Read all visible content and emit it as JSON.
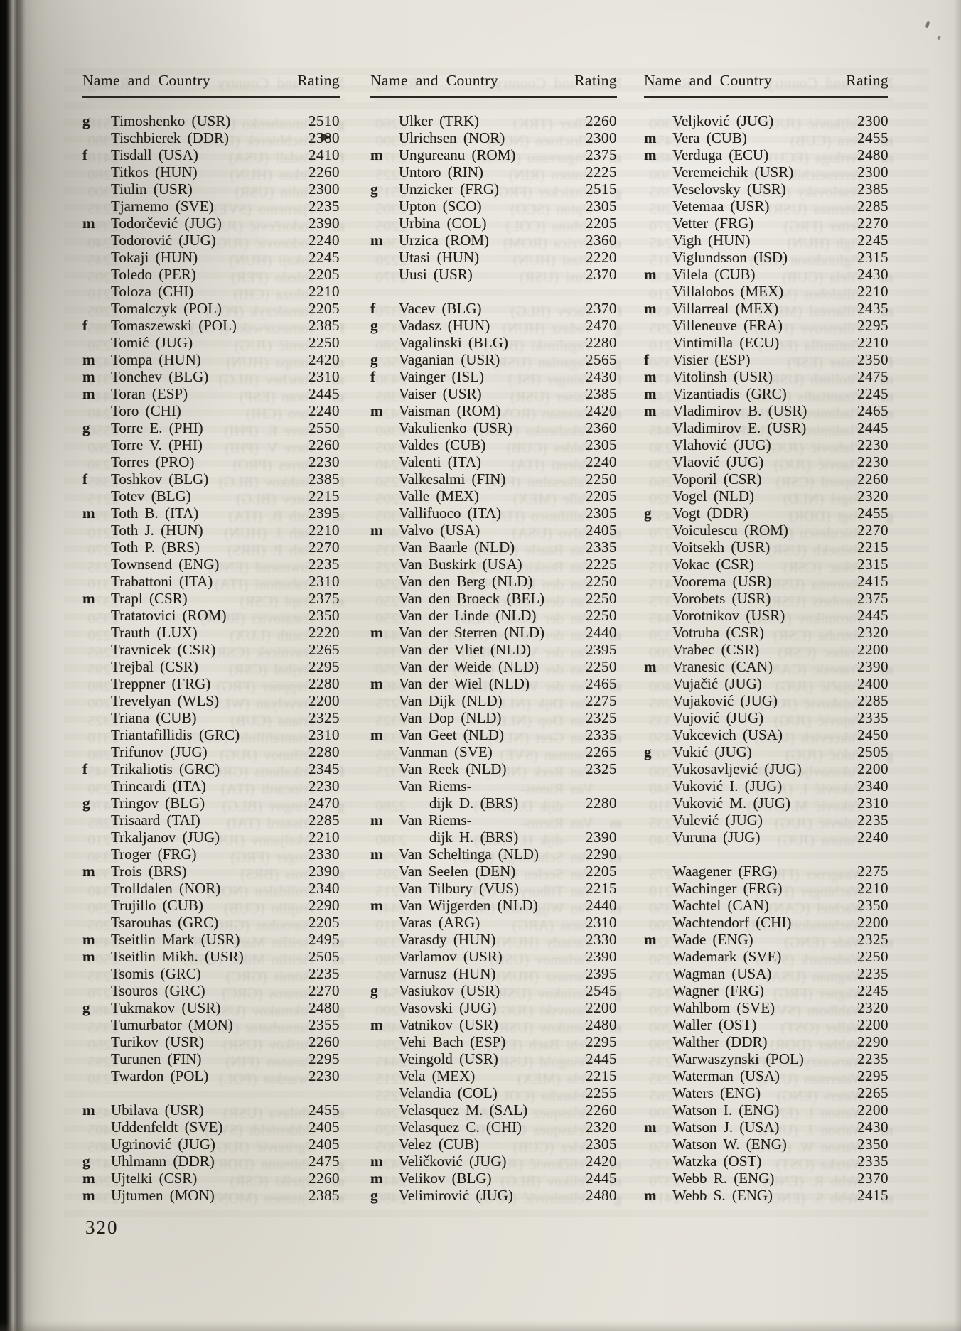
{
  "page": {
    "number": "320",
    "header": {
      "name_country": "Name and Country",
      "rating": "Rating"
    }
  },
  "columns": [
    {
      "entries": [
        {
          "p": "g",
          "n": "Timoshenko (USR)",
          "r": "2510"
        },
        {
          "p": "",
          "n": "Tischbierek (DDR)",
          "r": "2380"
        },
        {
          "p": "f",
          "n": "Tisdall (USA)",
          "r": "2410"
        },
        {
          "p": "",
          "n": "Titkos (HUN)",
          "r": "2260"
        },
        {
          "p": "",
          "n": "Tiulin (USR)",
          "r": "2300"
        },
        {
          "p": "",
          "n": "Tjarnemo (SVE)",
          "r": "2235"
        },
        {
          "p": "m",
          "n": "Todorčević (JUG)",
          "r": "2390"
        },
        {
          "p": "",
          "n": "Todorović (JUG)",
          "r": "2240"
        },
        {
          "p": "",
          "n": "Tokaji (HUN)",
          "r": "2245"
        },
        {
          "p": "",
          "n": "Toledo (PER)",
          "r": "2205"
        },
        {
          "p": "",
          "n": "Toloza (CHI)",
          "r": "2210"
        },
        {
          "p": "",
          "n": "Tomalczyk (POL)",
          "r": "2205"
        },
        {
          "p": "f",
          "n": "Tomaszewski (POL)",
          "r": "2385"
        },
        {
          "p": "",
          "n": "Tomić (JUG)",
          "r": "2250"
        },
        {
          "p": "m",
          "n": "Tompa (HUN)",
          "r": "2420"
        },
        {
          "p": "m",
          "n": "Tonchev (BLG)",
          "r": "2310"
        },
        {
          "p": "m",
          "n": "Toran (ESP)",
          "r": "2445"
        },
        {
          "p": "",
          "n": "Toro (CHI)",
          "r": "2240"
        },
        {
          "p": "g",
          "n": "Torre E. (PHI)",
          "r": "2550"
        },
        {
          "p": "",
          "n": "Torre V. (PHI)",
          "r": "2260"
        },
        {
          "p": "",
          "n": "Torres (PRO)",
          "r": "2230"
        },
        {
          "p": "f",
          "n": "Toshkov (BLG)",
          "r": "2385"
        },
        {
          "p": "",
          "n": "Totev (BLG)",
          "r": "2215"
        },
        {
          "p": "m",
          "n": "Toth B. (ITA)",
          "r": "2395"
        },
        {
          "p": "",
          "n": "Toth J. (HUN)",
          "r": "2210"
        },
        {
          "p": "",
          "n": "Toth P. (BRS)",
          "r": "2270"
        },
        {
          "p": "",
          "n": "Townsend (ENG)",
          "r": "2235"
        },
        {
          "p": "",
          "n": "Trabattoni (ITA)",
          "r": "2310"
        },
        {
          "p": "m",
          "n": "Trapl (CSR)",
          "r": "2375"
        },
        {
          "p": "",
          "n": "Tratatovici (ROM)",
          "r": "2350"
        },
        {
          "p": "",
          "n": "Trauth (LUX)",
          "r": "2220"
        },
        {
          "p": "",
          "n": "Travnicek (CSR)",
          "r": "2265"
        },
        {
          "p": "",
          "n": "Trejbal (CSR)",
          "r": "2295"
        },
        {
          "p": "",
          "n": "Treppner (FRG)",
          "r": "2280"
        },
        {
          "p": "",
          "n": "Trevelyan (WLS)",
          "r": "2200"
        },
        {
          "p": "",
          "n": "Triana (CUB)",
          "r": "2325"
        },
        {
          "p": "",
          "n": "Triantafillidis (GRC)",
          "r": "2310"
        },
        {
          "p": "",
          "n": "Trifunov (JUG)",
          "r": "2280"
        },
        {
          "p": "f",
          "n": "Trikaliotis (GRC)",
          "r": "2345"
        },
        {
          "p": "",
          "n": "Trincardi (ITA)",
          "r": "2230"
        },
        {
          "p": "g",
          "n": "Tringov (BLG)",
          "r": "2470"
        },
        {
          "p": "",
          "n": "Trisaard (TAI)",
          "r": "2285"
        },
        {
          "p": "",
          "n": "Trkaljanov (JUG)",
          "r": "2210"
        },
        {
          "p": "",
          "n": "Troger (FRG)",
          "r": "2330"
        },
        {
          "p": "m",
          "n": "Trois (BRS)",
          "r": "2390"
        },
        {
          "p": "",
          "n": "Trolldalen (NOR)",
          "r": "2340"
        },
        {
          "p": "",
          "n": "Trujillo (CUB)",
          "r": "2290"
        },
        {
          "p": "",
          "n": "Tsarouhas (GRC)",
          "r": "2205"
        },
        {
          "p": "m",
          "n": "Tseitlin Mark (USR)",
          "r": "2495"
        },
        {
          "p": "m",
          "n": "Tseitlin Mikh. (USR)",
          "r": "2505"
        },
        {
          "p": "",
          "n": "Tsomis (GRC)",
          "r": "2235"
        },
        {
          "p": "",
          "n": "Tsouros (GRC)",
          "r": "2270"
        },
        {
          "p": "g",
          "n": "Tukmakov (USR)",
          "r": "2480"
        },
        {
          "p": "",
          "n": "Tumurbator (MON)",
          "r": "2355"
        },
        {
          "p": "",
          "n": "Turikov (USR)",
          "r": "2260"
        },
        {
          "p": "",
          "n": "Turunen (FIN)",
          "r": "2295"
        },
        {
          "p": "",
          "n": "Twardon (POL)",
          "r": "2230"
        },
        {
          "gap": true
        },
        {
          "p": "m",
          "n": "Ubilava (USR)",
          "r": "2455"
        },
        {
          "p": "",
          "n": "Uddenfeldt (SVE)",
          "r": "2405"
        },
        {
          "p": "",
          "n": "Ugrinović (JUG)",
          "r": "2405"
        },
        {
          "p": "g",
          "n": "Uhlmann (DDR)",
          "r": "2475"
        },
        {
          "p": "m",
          "n": "Ujtelki (CSR)",
          "r": "2260"
        },
        {
          "p": "m",
          "n": "Ujtumen (MON)",
          "r": "2385"
        }
      ]
    },
    {
      "entries": [
        {
          "p": "",
          "n": "Ulker (TRK)",
          "r": "2260"
        },
        {
          "p": "",
          "n": "Ulrichsen (NOR)",
          "r": "2300"
        },
        {
          "p": "m",
          "n": "Ungureanu (ROM)",
          "r": "2375"
        },
        {
          "p": "",
          "n": "Untoro (RIN)",
          "r": "2225"
        },
        {
          "p": "g",
          "n": "Unzicker (FRG)",
          "r": "2515"
        },
        {
          "p": "",
          "n": "Upton (SCO)",
          "r": "2305"
        },
        {
          "p": "",
          "n": "Urbina (COL)",
          "r": "2205"
        },
        {
          "p": "m",
          "n": "Urzica (ROM)",
          "r": "2360"
        },
        {
          "p": "",
          "n": "Utasi (HUN)",
          "r": "2220"
        },
        {
          "p": "",
          "n": "Uusi (USR)",
          "r": "2370"
        },
        {
          "gap": true
        },
        {
          "p": "f",
          "n": "Vacev (BLG)",
          "r": "2370"
        },
        {
          "p": "g",
          "n": "Vadasz (HUN)",
          "r": "2470"
        },
        {
          "p": "",
          "n": "Vagalinski (BLG)",
          "r": "2280"
        },
        {
          "p": "g",
          "n": "Vaganian (USR)",
          "r": "2565"
        },
        {
          "p": "f",
          "n": "Vainger (ISL)",
          "r": "2430"
        },
        {
          "p": "",
          "n": "Vaiser (USR)",
          "r": "2385"
        },
        {
          "p": "m",
          "n": "Vaisman (ROM)",
          "r": "2420"
        },
        {
          "p": "",
          "n": "Vakulienko (USR)",
          "r": "2360"
        },
        {
          "p": "",
          "n": "Valdes (CUB)",
          "r": "2305"
        },
        {
          "p": "",
          "n": "Valenti (ITA)",
          "r": "2240"
        },
        {
          "p": "",
          "n": "Valkesalmi (FIN)",
          "r": "2250"
        },
        {
          "p": "",
          "n": "Valle (MEX)",
          "r": "2205"
        },
        {
          "p": "",
          "n": "Vallifuoco (ITA)",
          "r": "2305"
        },
        {
          "p": "m",
          "n": "Valvo (USA)",
          "r": "2405"
        },
        {
          "p": "",
          "n": "Van Baarle (NLD)",
          "r": "2335"
        },
        {
          "p": "",
          "n": "Van Buskirk (USA)",
          "r": "2225"
        },
        {
          "p": "",
          "n": "Van den Berg (NLD)",
          "r": "2250"
        },
        {
          "p": "",
          "n": "Van den Broeck (BEL)",
          "r": "2250"
        },
        {
          "p": "",
          "n": "Van der Linde (NLD)",
          "r": "2250"
        },
        {
          "p": "m",
          "n": "Van der Sterren (NLD)",
          "r": "2440"
        },
        {
          "p": "",
          "n": "Van der Vliet (NLD)",
          "r": "2395"
        },
        {
          "p": "",
          "n": "Van der Weide (NLD)",
          "r": "2250"
        },
        {
          "p": "m",
          "n": "Van der Wiel (NLD)",
          "r": "2465"
        },
        {
          "p": "",
          "n": "Van Dijk (NLD)",
          "r": "2275"
        },
        {
          "p": "",
          "n": "Van Dop (NLD)",
          "r": "2325"
        },
        {
          "p": "m",
          "n": "Van Geet (NLD)",
          "r": "2335"
        },
        {
          "p": "",
          "n": "Vanman (SVE)",
          "r": "2265"
        },
        {
          "p": "",
          "n": "Van Reek (NLD)",
          "r": "2325"
        },
        {
          "p": "",
          "n": "Van Riems-",
          "r": ""
        },
        {
          "p": "",
          "n": "dijk D. (BRS)",
          "r": "2280",
          "i": true
        },
        {
          "p": "m",
          "n": "Van Riems-",
          "r": ""
        },
        {
          "p": "",
          "n": "dijk H. (BRS)",
          "r": "2390",
          "i": true
        },
        {
          "p": "m",
          "n": "Van Scheltinga (NLD)",
          "r": "2290"
        },
        {
          "p": "",
          "n": "Van Seelen (DEN)",
          "r": "2205"
        },
        {
          "p": "",
          "n": "Van Tilbury (VUS)",
          "r": "2215"
        },
        {
          "p": "m",
          "n": "Van Wijgerden (NLD)",
          "r": "2440"
        },
        {
          "p": "",
          "n": "Varas (ARG)",
          "r": "2310"
        },
        {
          "p": "",
          "n": "Varasdy (HUN)",
          "r": "2330"
        },
        {
          "p": "",
          "n": "Varlamov (USR)",
          "r": "2390"
        },
        {
          "p": "",
          "n": "Varnusz (HUN)",
          "r": "2395"
        },
        {
          "p": "g",
          "n": "Vasiukov (USR)",
          "r": "2545"
        },
        {
          "p": "",
          "n": "Vasovski (JUG)",
          "r": "2200"
        },
        {
          "p": "m",
          "n": "Vatnikov (USR)",
          "r": "2480"
        },
        {
          "p": "",
          "n": "Vehi Bach (ESP)",
          "r": "2295"
        },
        {
          "p": "",
          "n": "Veingold (USR)",
          "r": "2445"
        },
        {
          "p": "",
          "n": "Vela (MEX)",
          "r": "2215"
        },
        {
          "p": "",
          "n": "Velandia (COL)",
          "r": "2255"
        },
        {
          "p": "",
          "n": "Velasquez M. (SAL)",
          "r": "2260"
        },
        {
          "p": "",
          "n": "Velasquez C. (CHI)",
          "r": "2320"
        },
        {
          "p": "",
          "n": "Velez (CUB)",
          "r": "2305"
        },
        {
          "p": "m",
          "n": "Veličković (JUG)",
          "r": "2420"
        },
        {
          "p": "m",
          "n": "Velikov (BLG)",
          "r": "2445"
        },
        {
          "p": "g",
          "n": "Velimirović (JUG)",
          "r": "2480"
        }
      ]
    },
    {
      "entries": [
        {
          "p": "",
          "n": "Veljković (JUG)",
          "r": "2300"
        },
        {
          "p": "m",
          "n": "Vera (CUB)",
          "r": "2455"
        },
        {
          "p": "m",
          "n": "Verduga (ECU)",
          "r": "2480"
        },
        {
          "p": "",
          "n": "Veremeichik (USR)",
          "r": "2300"
        },
        {
          "p": "",
          "n": "Veselovsky (USR)",
          "r": "2385"
        },
        {
          "p": "",
          "n": "Vetemaa (USR)",
          "r": "2285"
        },
        {
          "p": "",
          "n": "Vetter (FRG)",
          "r": "2270"
        },
        {
          "p": "",
          "n": "Vigh (HUN)",
          "r": "2245"
        },
        {
          "p": "",
          "n": "Viglundsson (ISD)",
          "r": "2315"
        },
        {
          "p": "m",
          "n": "Vilela (CUB)",
          "r": "2430"
        },
        {
          "p": "",
          "n": "Villalobos (MEX)",
          "r": "2210"
        },
        {
          "p": "m",
          "n": "Villarreal (MEX)",
          "r": "2435"
        },
        {
          "p": "",
          "n": "Villeneuve (FRA)",
          "r": "2295"
        },
        {
          "p": "",
          "n": "Vintimilla (ECU)",
          "r": "2210"
        },
        {
          "p": "f",
          "n": "Visier (ESP)",
          "r": "2350"
        },
        {
          "p": "m",
          "n": "Vitolinsh (USR)",
          "r": "2475"
        },
        {
          "p": "m",
          "n": "Vizantiadis (GRC)",
          "r": "2245"
        },
        {
          "p": "m",
          "n": "Vladimirov B. (USR)",
          "r": "2465"
        },
        {
          "p": "",
          "n": "Vladimirov E. (USR)",
          "r": "2445"
        },
        {
          "p": "",
          "n": "Vlahović (JUG)",
          "r": "2230"
        },
        {
          "p": "",
          "n": "Vlaović (JUG)",
          "r": "2230"
        },
        {
          "p": "",
          "n": "Voporil (CSR)",
          "r": "2260"
        },
        {
          "p": "",
          "n": "Vogel (NLD)",
          "r": "2320"
        },
        {
          "p": "g",
          "n": "Vogt (DDR)",
          "r": "2455"
        },
        {
          "p": "",
          "n": "Voiculescu (ROM)",
          "r": "2270"
        },
        {
          "p": "",
          "n": "Voitsekh (USR)",
          "r": "2215"
        },
        {
          "p": "",
          "n": "Vokac (CSR)",
          "r": "2315"
        },
        {
          "p": "",
          "n": "Voorema (USR)",
          "r": "2415"
        },
        {
          "p": "",
          "n": "Vorobets (USR)",
          "r": "2375"
        },
        {
          "p": "",
          "n": "Vorotnikov (USR)",
          "r": "2445"
        },
        {
          "p": "",
          "n": "Votruba (CSR)",
          "r": "2320"
        },
        {
          "p": "",
          "n": "Vrabec (CSR)",
          "r": "2200"
        },
        {
          "p": "m",
          "n": "Vranesic (CAN)",
          "r": "2390"
        },
        {
          "p": "",
          "n": "Vujačić (JUG)",
          "r": "2400"
        },
        {
          "p": "",
          "n": "Vujaković (JUG)",
          "r": "2285"
        },
        {
          "p": "",
          "n": "Vujović (JUG)",
          "r": "2335"
        },
        {
          "p": "",
          "n": "Vukcevich (USA)",
          "r": "2450"
        },
        {
          "p": "g",
          "n": "Vukić (JUG)",
          "r": "2505"
        },
        {
          "p": "",
          "n": "Vukosavljević (JUG)",
          "r": "2200"
        },
        {
          "p": "",
          "n": "Vuković I. (JUG)",
          "r": "2340"
        },
        {
          "p": "",
          "n": "Vuković M. (JUG)",
          "r": "2310"
        },
        {
          "p": "",
          "n": "Vulević (JUG)",
          "r": "2235"
        },
        {
          "p": "",
          "n": "Vuruna (JUG)",
          "r": "2240"
        },
        {
          "gap": true
        },
        {
          "p": "",
          "n": "Waagener (FRG)",
          "r": "2275"
        },
        {
          "p": "",
          "n": "Wachinger (FRG)",
          "r": "2210"
        },
        {
          "p": "",
          "n": "Wachtel (CAN)",
          "r": "2350"
        },
        {
          "p": "",
          "n": "Wachtendorf (CHI)",
          "r": "2200"
        },
        {
          "p": "m",
          "n": "Wade (ENG)",
          "r": "2325"
        },
        {
          "p": "",
          "n": "Wademark (SVE)",
          "r": "2250"
        },
        {
          "p": "",
          "n": "Wagman (USA)",
          "r": "2235"
        },
        {
          "p": "",
          "n": "Wagner (FRG)",
          "r": "2245"
        },
        {
          "p": "",
          "n": "Wahlbom (SVE)",
          "r": "2320"
        },
        {
          "p": "",
          "n": "Waller (OST)",
          "r": "2200"
        },
        {
          "p": "",
          "n": "Walther (DDR)",
          "r": "2290"
        },
        {
          "p": "",
          "n": "Warwaszynski (POL)",
          "r": "2235"
        },
        {
          "p": "",
          "n": "Waterman (USA)",
          "r": "2295"
        },
        {
          "p": "",
          "n": "Waters (ENG)",
          "r": "2265"
        },
        {
          "p": "",
          "n": "Watson I. (ENG)",
          "r": "2200"
        },
        {
          "p": "m",
          "n": "Watson J. (USA)",
          "r": "2430"
        },
        {
          "p": "",
          "n": "Watson W. (ENG)",
          "r": "2350"
        },
        {
          "p": "",
          "n": "Watzka (OST)",
          "r": "2335"
        },
        {
          "p": "",
          "n": "Webb R. (ENG)",
          "r": "2370"
        },
        {
          "p": "m",
          "n": "Webb S. (ENG)",
          "r": "2415"
        }
      ]
    }
  ]
}
